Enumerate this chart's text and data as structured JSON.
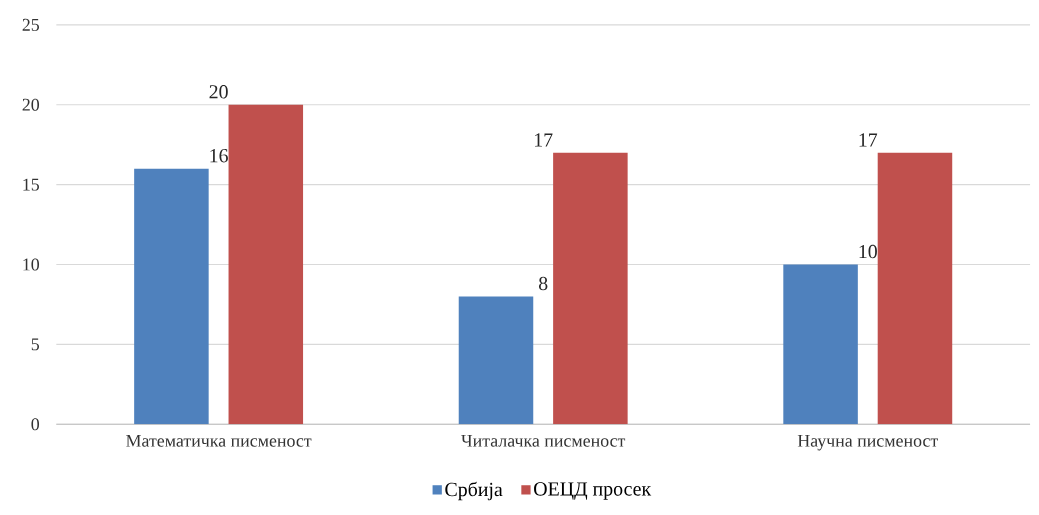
{
  "chart_data": {
    "type": "bar",
    "categories": [
      "Математичка писменост",
      "Читалачка писменост",
      "Научна писменост"
    ],
    "series": [
      {
        "name": "Србија",
        "color": "#4f81bd",
        "values": [
          16,
          8,
          10
        ]
      },
      {
        "name": "ОЕЦД просек",
        "color": "#c0504d",
        "values": [
          20,
          17,
          17
        ]
      }
    ],
    "ylim": [
      0,
      25
    ],
    "yticks": [
      0,
      5,
      10,
      15,
      20,
      25
    ],
    "grid": "y",
    "legend": "bottom",
    "data_labels": true
  }
}
